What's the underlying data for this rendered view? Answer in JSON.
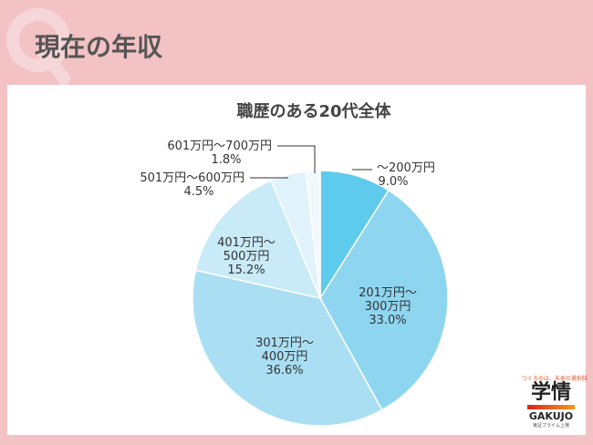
{
  "header": {
    "q_mark": "Q",
    "title": "現在の年収"
  },
  "chart_data": {
    "type": "pie",
    "title": "職歴のある20代全体",
    "categories": [
      "〜200万円",
      "201万円〜300万円",
      "301万円〜400万円",
      "401万円〜500万円",
      "501万円〜600万円",
      "601万円〜700万円"
    ],
    "values": [
      9.0,
      33.0,
      36.6,
      15.2,
      4.5,
      1.8
    ],
    "labels": [
      "9.0%",
      "33.0%",
      "36.6%",
      "15.2%",
      "4.5%",
      "1.8%"
    ],
    "colors": [
      "#5fcbec",
      "#8ed6f0",
      "#aadff3",
      "#c9eaf7",
      "#e0f3fa",
      "#f1f9fd"
    ],
    "start": "top",
    "direction": "clockwise"
  },
  "logo": {
    "tagline": "つくるのは、未来の選択肢",
    "name": "学情",
    "roman": "GAKUJO",
    "listing": "東証プライム上場"
  }
}
